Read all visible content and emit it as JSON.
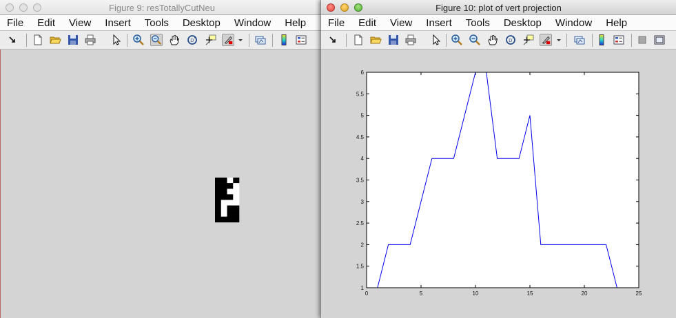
{
  "fig9": {
    "title": "Figure 9: resTotallyCutNeu",
    "menu": [
      "File",
      "Edit",
      "View",
      "Insert",
      "Tools",
      "Desktop",
      "Window",
      "Help"
    ]
  },
  "fig10": {
    "title": "Figure 10: plot of vert projection",
    "menu": [
      "File",
      "Edit",
      "View",
      "Insert",
      "Tools",
      "Desktop",
      "Window",
      "Help"
    ]
  },
  "toolbar_icons": [
    "dock-icon",
    "new-file-icon",
    "open-folder-icon",
    "save-icon",
    "print-icon",
    "pointer-icon",
    "zoom-in-icon",
    "zoom-out-icon",
    "pan-hand-icon",
    "rotate-3d-icon",
    "data-cursor-icon",
    "brush-icon",
    "link-plot-icon",
    "colorbar-icon",
    "legend-icon",
    "hide-plot-tools-icon",
    "show-plot-tools-icon"
  ],
  "colors": {
    "line": "#0000ee",
    "axes_bg": "#ffffff",
    "figure_bg": "#d4d4d4"
  },
  "chart_data": {
    "type": "line",
    "x": [
      1,
      2,
      3,
      4,
      5,
      6,
      7,
      8,
      9,
      10,
      11,
      12,
      13,
      14,
      15,
      16,
      17,
      18,
      19,
      20,
      21,
      22,
      23
    ],
    "series": [
      {
        "values": [
          1,
          2,
          2,
          2,
          3,
          4,
          4,
          4,
          5,
          6,
          6,
          4,
          4,
          4,
          5,
          2,
          2,
          2,
          2,
          2,
          2,
          2,
          1
        ]
      }
    ],
    "xlim": [
      0,
      25
    ],
    "ylim": [
      1,
      6
    ],
    "xticks": [
      0,
      5,
      10,
      15,
      20,
      25
    ],
    "yticks": [
      1,
      1.5,
      2,
      2.5,
      3,
      3.5,
      4,
      4.5,
      5,
      5.5,
      6
    ],
    "xtick_labels": [
      "0",
      "5",
      "10",
      "15",
      "20",
      "25"
    ],
    "ytick_labels": [
      "1",
      "1.5",
      "2",
      "2.5",
      "3",
      "3.5",
      "4",
      "4.5",
      "5",
      "5.5",
      "6"
    ],
    "title": "",
    "xlabel": "",
    "ylabel": "",
    "grid": false
  },
  "image9": {
    "type": "binary-image",
    "rows": 8,
    "cols": 4,
    "pixels": [
      [
        0,
        0,
        1,
        0
      ],
      [
        0,
        0,
        0,
        1
      ],
      [
        0,
        0,
        1,
        1
      ],
      [
        0,
        0,
        0,
        1
      ],
      [
        0,
        1,
        1,
        1
      ],
      [
        0,
        1,
        0,
        0
      ],
      [
        0,
        1,
        0,
        0
      ],
      [
        0,
        0,
        0,
        0
      ]
    ]
  }
}
